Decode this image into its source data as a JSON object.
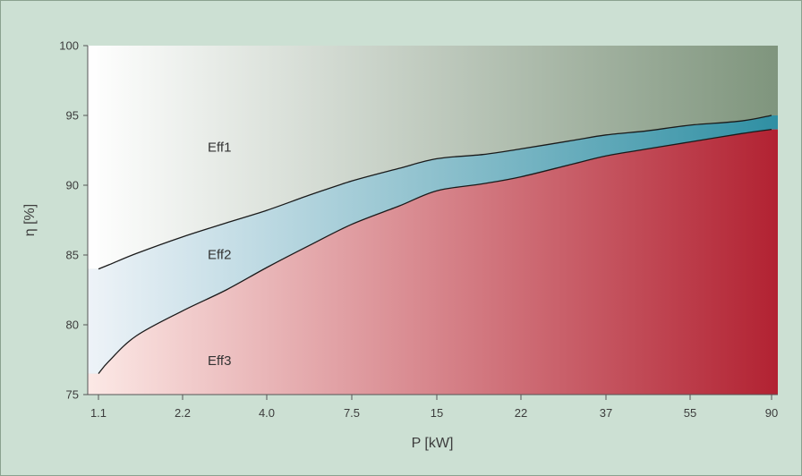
{
  "chart_data": {
    "type": "area",
    "xlabel": "P [kW]",
    "ylabel": "η [%]",
    "x_ticks": [
      "1.1",
      "2.2",
      "4.0",
      "7.5",
      "15",
      "22",
      "37",
      "55",
      "90"
    ],
    "x_scale": "categorical (log-like), ticks equally spaced",
    "y_ticks": [
      75,
      80,
      85,
      90,
      95,
      100
    ],
    "ylim": [
      75,
      100
    ],
    "grid": false,
    "colors": {
      "eff1_from": "#ffffff",
      "eff1_to": "#7f957d",
      "eff2_from": "#eef3f8",
      "eff2_to": "#2f8fa3",
      "eff3_from": "#fce9e6",
      "eff3_to": "#b22232",
      "boundary_line": "#1a1a1a"
    },
    "series": [
      {
        "name": "Eff1",
        "role": "upper boundary curve (Eff1/Eff2)",
        "x": [
          "1.1",
          "1.2",
          "1.5",
          "2.2",
          "3.0",
          "4.0",
          "5.5",
          "7.5",
          "11",
          "15",
          "18.5",
          "22",
          "30",
          "37",
          "45",
          "55",
          "75",
          "90"
        ],
        "values": [
          84.0,
          84.3,
          85.1,
          86.3,
          87.3,
          88.2,
          89.3,
          90.3,
          91.2,
          91.9,
          92.2,
          92.6,
          93.2,
          93.6,
          93.9,
          94.3,
          94.6,
          95.0
        ]
      },
      {
        "name": "Eff2",
        "role": "lower boundary curve (Eff2/Eff3)",
        "x": [
          "1.1",
          "1.2",
          "1.5",
          "2.2",
          "3.0",
          "4.0",
          "5.5",
          "7.5",
          "11",
          "15",
          "18.5",
          "22",
          "30",
          "37",
          "45",
          "55",
          "75",
          "90"
        ],
        "values": [
          76.5,
          77.4,
          79.2,
          81.0,
          82.5,
          84.1,
          85.7,
          87.2,
          88.5,
          89.6,
          90.1,
          90.6,
          91.5,
          92.1,
          92.6,
          93.1,
          93.7,
          94.0
        ]
      },
      {
        "name": "Eff3",
        "role": "region below the lower boundary",
        "x": [],
        "values": []
      }
    ],
    "annotations": [
      {
        "text": "Eff1",
        "x": "2.2",
        "y": 92.4
      },
      {
        "text": "Eff2",
        "x": "2.2",
        "y": 84.7
      },
      {
        "text": "Eff3",
        "x": "2.2",
        "y": 77.1
      }
    ]
  }
}
